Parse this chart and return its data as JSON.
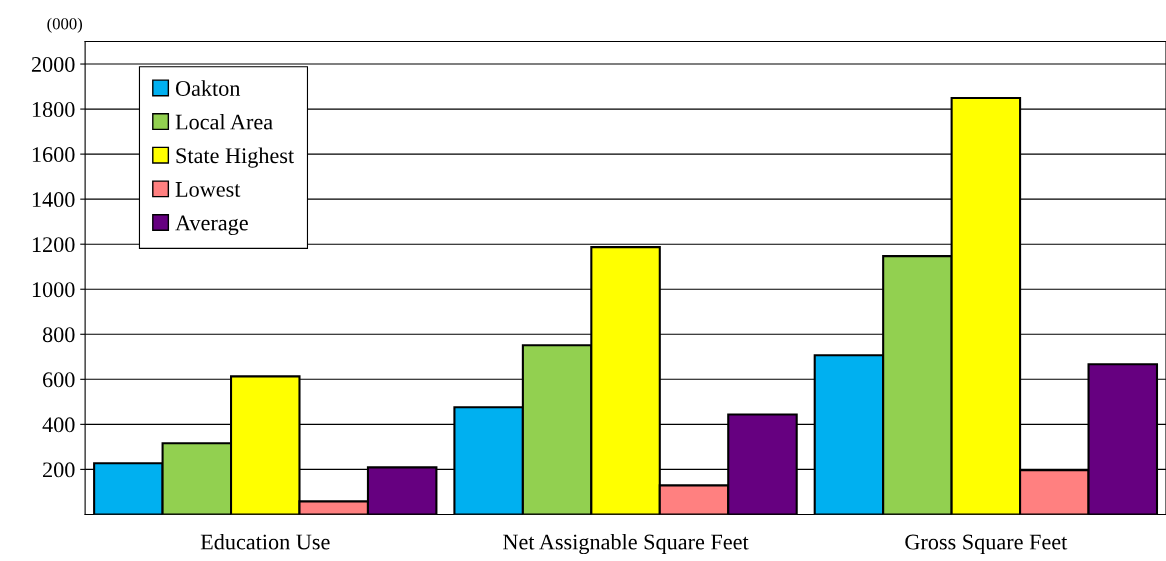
{
  "chart_data": {
    "type": "bar",
    "categories": [
      "Education Use",
      "Net Assignable Square Feet",
      "Gross Square Feet"
    ],
    "series": [
      {
        "name": "Oakton",
        "color": "#00b0f0",
        "values": [
          227,
          476,
          707
        ]
      },
      {
        "name": "Local Area",
        "color": "#92d050",
        "values": [
          316,
          751,
          1147
        ]
      },
      {
        "name": "State Highest",
        "color": "#ffff00",
        "values": [
          613,
          1187,
          1849
        ]
      },
      {
        "name": "Lowest",
        "color": "#ff8080",
        "values": [
          58,
          129,
          196
        ]
      },
      {
        "name": "Average",
        "color": "#660080",
        "values": [
          209,
          444,
          667
        ]
      }
    ],
    "ylim": [
      0,
      2100
    ],
    "yticks": [
      200,
      400,
      600,
      800,
      1000,
      1200,
      1400,
      1600,
      1800,
      2000
    ],
    "grid": "y",
    "legend": "top left",
    "annotations": [
      "(000)"
    ]
  }
}
